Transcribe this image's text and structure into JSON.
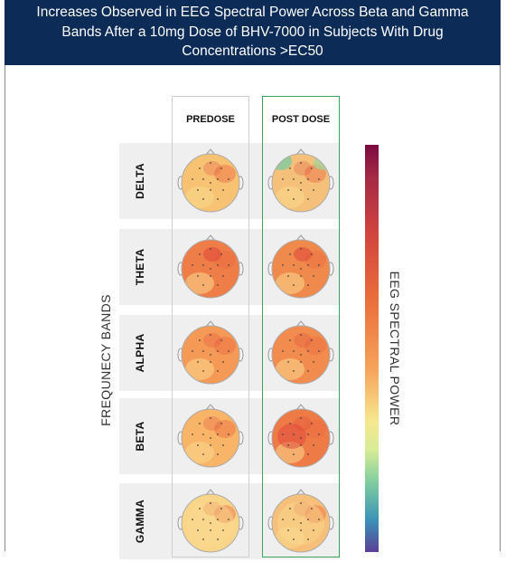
{
  "title": {
    "line1": "Increases Observed in EEG Spectral Power Across Beta and Gamma",
    "line2": "Bands After a 10mg Dose of BHV-7000 in Subjects With Drug",
    "line3": "Concentrations >EC50"
  },
  "columns": {
    "predose": "PREDOSE",
    "postdose": "POST DOSE"
  },
  "axis_label": "FREQUNECY BANDS",
  "colorbar_label": "EEG SPECTRAL POWER",
  "colorbar_colors": [
    "#7a0a40",
    "#d2443f",
    "#f6a35a",
    "#f7e88f",
    "#7fcca0",
    "#3b94b6",
    "#5b3f97"
  ],
  "bands": [
    {
      "name": "DELTA",
      "predose_color": "#f7c272",
      "postdose_color": "#f5c07a"
    },
    {
      "name": "THETA",
      "predose_color": "#ef7d48",
      "postdose_color": "#f08a4c"
    },
    {
      "name": "ALPHA",
      "predose_color": "#f59a56",
      "postdose_color": "#f18c4e"
    },
    {
      "name": "BETA",
      "predose_color": "#f8b467",
      "postdose_color": "#ee7a46"
    },
    {
      "name": "GAMMA",
      "predose_color": "#f9d58a",
      "postdose_color": "#f7c07a"
    }
  ]
}
